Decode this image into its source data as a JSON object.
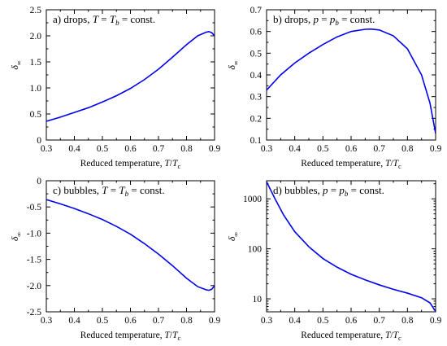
{
  "chart_data": [
    {
      "type": "line",
      "title": "a) drops, T = T_b = const.",
      "title_parts": {
        "prefix": "a) drops, ",
        "v1": "T",
        "eq1": " = ",
        "v2": "T",
        "sub2": "b",
        "eq2": " = const."
      },
      "xlabel": "Reduced temperature, T/T_c",
      "ylabel": "δ∞",
      "xlim": [
        0.3,
        0.9
      ],
      "ylim": [
        0,
        2.5
      ],
      "xticks": [
        0.3,
        0.4,
        0.5,
        0.6,
        0.7,
        0.8,
        0.9
      ],
      "yticks": [
        0,
        0.5,
        1.0,
        1.5,
        2.0,
        2.5
      ],
      "xtick_labels": [
        "0.3",
        "0.4",
        "0.5",
        "0.6",
        "0.7",
        "0.8",
        "0.9"
      ],
      "ytick_labels": [
        "0",
        "0.5",
        "1.0",
        "1.5",
        "2.0",
        "2.5"
      ],
      "yscale": "linear",
      "series": [
        {
          "color": "#0000ee",
          "x": [
            0.3,
            0.35,
            0.4,
            0.45,
            0.5,
            0.55,
            0.6,
            0.65,
            0.7,
            0.75,
            0.8,
            0.84,
            0.87,
            0.88,
            0.89,
            0.9
          ],
          "y": [
            0.36,
            0.44,
            0.53,
            0.62,
            0.73,
            0.85,
            0.99,
            1.16,
            1.36,
            1.59,
            1.83,
            2.0,
            2.07,
            2.08,
            2.06,
            2.0
          ]
        }
      ]
    },
    {
      "type": "line",
      "title": "b) drops, p = p_b = const.",
      "title_parts": {
        "prefix": "b) drops, ",
        "v1": "p",
        "eq1": " = ",
        "v2": "p",
        "sub2": "b",
        "eq2": " = const."
      },
      "xlabel": "Reduced temperature, T/T_c",
      "ylabel": "δ∞",
      "xlim": [
        0.3,
        0.9
      ],
      "ylim": [
        0.1,
        0.7
      ],
      "xticks": [
        0.3,
        0.4,
        0.5,
        0.6,
        0.7,
        0.8,
        0.9
      ],
      "yticks": [
        0.1,
        0.2,
        0.3,
        0.4,
        0.5,
        0.6,
        0.7
      ],
      "xtick_labels": [
        "0.3",
        "0.4",
        "0.5",
        "0.6",
        "0.7",
        "0.8",
        "0.9"
      ],
      "ytick_labels": [
        "0.1",
        "0.2",
        "0.3",
        "0.4",
        "0.5",
        "0.6",
        "0.7"
      ],
      "yscale": "linear",
      "series": [
        {
          "color": "#0000ee",
          "x": [
            0.3,
            0.35,
            0.4,
            0.45,
            0.5,
            0.55,
            0.6,
            0.65,
            0.67,
            0.7,
            0.75,
            0.8,
            0.85,
            0.88,
            0.9
          ],
          "y": [
            0.33,
            0.4,
            0.455,
            0.5,
            0.54,
            0.575,
            0.6,
            0.61,
            0.611,
            0.607,
            0.58,
            0.52,
            0.4,
            0.27,
            0.13
          ]
        }
      ]
    },
    {
      "type": "line",
      "title": "c) bubbles, T = T_b = const.",
      "title_parts": {
        "prefix": "c) bubbles, ",
        "v1": "T",
        "eq1": " = ",
        "v2": "T",
        "sub2": "b",
        "eq2": " = const."
      },
      "xlabel": "Reduced temperature, T/T_c",
      "ylabel": "δ∞",
      "xlim": [
        0.3,
        0.9
      ],
      "ylim": [
        -2.5,
        0
      ],
      "xticks": [
        0.3,
        0.4,
        0.5,
        0.6,
        0.7,
        0.8,
        0.9
      ],
      "yticks": [
        -2.5,
        -2.0,
        -1.5,
        -1.0,
        -0.5,
        0
      ],
      "xtick_labels": [
        "0.3",
        "0.4",
        "0.5",
        "0.6",
        "0.7",
        "0.8",
        "0.9"
      ],
      "ytick_labels": [
        "-2.5",
        "-2.0",
        "-1.5",
        "-1.0",
        "-0.5",
        "0"
      ],
      "yscale": "linear",
      "series": [
        {
          "color": "#0000ee",
          "x": [
            0.3,
            0.35,
            0.4,
            0.45,
            0.5,
            0.55,
            0.6,
            0.65,
            0.7,
            0.75,
            0.8,
            0.84,
            0.87,
            0.88,
            0.89,
            0.9
          ],
          "y": [
            -0.36,
            -0.44,
            -0.53,
            -0.63,
            -0.74,
            -0.87,
            -1.02,
            -1.2,
            -1.4,
            -1.62,
            -1.86,
            -2.02,
            -2.08,
            -2.09,
            -2.07,
            -2.0
          ]
        }
      ]
    },
    {
      "type": "line",
      "title": "d) bubbles, p = p_b = const.",
      "title_parts": {
        "prefix": "d) bubbles, ",
        "v1": "p",
        "eq1": " = ",
        "v2": "p",
        "sub2": "b",
        "eq2": " = const."
      },
      "xlabel": "Reduced temperature, T/T_c",
      "ylabel": "δ∞",
      "xlim": [
        0.3,
        0.9
      ],
      "ylim": [
        5.5,
        2300
      ],
      "xticks": [
        0.3,
        0.4,
        0.5,
        0.6,
        0.7,
        0.8,
        0.9
      ],
      "yticks": [
        10,
        100,
        1000
      ],
      "xtick_labels": [
        "0.3",
        "0.4",
        "0.5",
        "0.6",
        "0.7",
        "0.8",
        "0.9"
      ],
      "ytick_labels": [
        "10",
        "100",
        "1000"
      ],
      "yscale": "log",
      "series": [
        {
          "color": "#0000ee",
          "x": [
            0.3,
            0.33,
            0.36,
            0.4,
            0.45,
            0.5,
            0.55,
            0.6,
            0.65,
            0.7,
            0.75,
            0.8,
            0.85,
            0.88,
            0.9
          ],
          "y": [
            2200,
            1000,
            480,
            220,
            110,
            64,
            43,
            31,
            24,
            19,
            15.5,
            13,
            10.5,
            8.3,
            5.6
          ]
        }
      ]
    }
  ],
  "common": {
    "xlabel_prefix": "Reduced temperature, ",
    "xlabel_var": "T",
    "xlabel_slash": "/",
    "xlabel_var2": "T",
    "xlabel_sub": "c",
    "ylabel_main": "δ",
    "ylabel_sub": "∞"
  }
}
